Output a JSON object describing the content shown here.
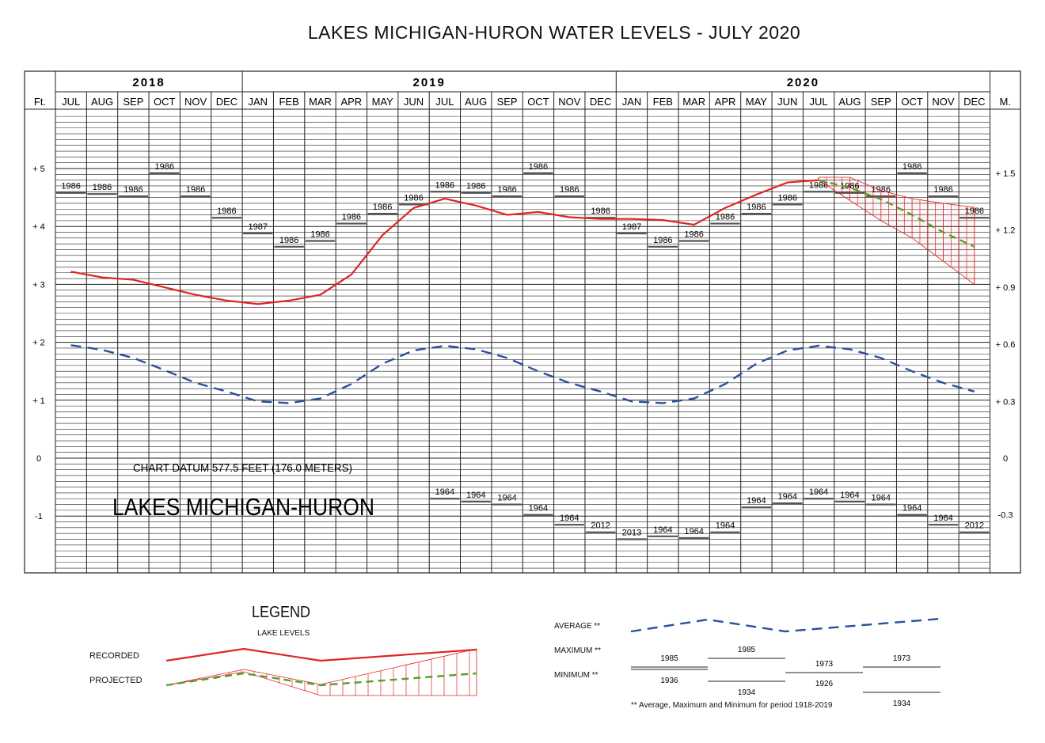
{
  "title": "LAKES MICHIGAN-HURON WATER LEVELS - JULY 2020",
  "header": {
    "left_unit": "Ft.",
    "right_unit": "M.",
    "years": [
      {
        "label": "2018",
        "months": 6
      },
      {
        "label": "2019",
        "months": 12
      },
      {
        "label": "2020",
        "months": 12
      }
    ],
    "months": [
      "JUL",
      "AUG",
      "SEP",
      "OCT",
      "NOV",
      "DEC",
      "JAN",
      "FEB",
      "MAR",
      "APR",
      "MAY",
      "JUN",
      "JUL",
      "AUG",
      "SEP",
      "OCT",
      "NOV",
      "DEC",
      "JAN",
      "FEB",
      "MAR",
      "APR",
      "MAY",
      "JUN",
      "JUL",
      "AUG",
      "SEP",
      "OCT",
      "NOV",
      "DEC"
    ]
  },
  "datum_text": "CHART DATUM  577.5 FEET (176.0 METERS)",
  "lake_name": "LAKES MICHIGAN-HURON",
  "colors": {
    "recorded": "#e02424",
    "projected": "#5a9e2a",
    "average": "#2d4f9c",
    "grid": "#222222"
  },
  "chart_data": {
    "type": "line",
    "ylim": [
      -2.0,
      6.0
    ],
    "left_ticks": [
      {
        "value": 5,
        "label": "+ 5"
      },
      {
        "value": 4,
        "label": "+ 4"
      },
      {
        "value": 3,
        "label": "+ 3"
      },
      {
        "value": 2,
        "label": "+ 2"
      },
      {
        "value": 1,
        "label": "+ 1"
      },
      {
        "value": 0,
        "label": "0"
      },
      {
        "value": -1,
        "label": "-1"
      }
    ],
    "right_ticks": [
      {
        "value": 4.92,
        "label": "+ 1.5"
      },
      {
        "value": 3.94,
        "label": "+ 1.2"
      },
      {
        "value": 2.95,
        "label": "+ 0.9"
      },
      {
        "value": 1.97,
        "label": "+ 0.6"
      },
      {
        "value": 0.98,
        "label": "+ 0.3"
      },
      {
        "value": 0,
        "label": "0"
      },
      {
        "value": -0.98,
        "label": "-0.3"
      }
    ],
    "recorded": [
      3.22,
      3.12,
      3.08,
      2.95,
      2.82,
      2.72,
      2.66,
      2.72,
      2.82,
      3.17,
      3.85,
      4.32,
      4.48,
      4.36,
      4.2,
      4.25,
      4.16,
      4.13,
      4.13,
      4.11,
      4.03,
      4.32,
      4.55,
      4.76,
      4.8
    ],
    "projected": {
      "start_index": 24,
      "mid": [
        4.8,
        4.67,
        4.47,
        4.2,
        3.9,
        3.65
      ],
      "max": [
        4.85,
        4.85,
        4.62,
        4.48,
        4.4,
        4.33
      ],
      "min": [
        4.8,
        4.45,
        4.1,
        3.8,
        3.4,
        3.0
      ]
    },
    "average": [
      1.95,
      1.87,
      1.73,
      1.52,
      1.3,
      1.15,
      0.98,
      0.95,
      1.03,
      1.28,
      1.63,
      1.86,
      1.94,
      1.88,
      1.73,
      1.5,
      1.3,
      1.15,
      0.98,
      0.95,
      1.03,
      1.28,
      1.63,
      1.86,
      1.94,
      1.88,
      1.73,
      1.5,
      1.3,
      1.15
    ],
    "max_record": {
      "levels": [
        4.58,
        4.56,
        4.52,
        4.92,
        4.52,
        4.15,
        3.88,
        3.65,
        3.75,
        4.05,
        4.22,
        4.38,
        4.6,
        4.58,
        4.52,
        4.92,
        4.52,
        4.15,
        3.88,
        3.65,
        3.75,
        4.05,
        4.22,
        4.38,
        4.6,
        4.58,
        4.52,
        4.92,
        4.52,
        4.15
      ],
      "years": [
        "1986",
        "1986",
        "1986",
        "1986",
        "1986",
        "1986",
        "1987",
        "1986",
        "1986",
        "1986",
        "1986",
        "1986",
        "1986",
        "1986",
        "1986",
        "1986",
        "1986",
        "1986",
        "1987",
        "1986",
        "1986",
        "1986",
        "1986",
        "1986",
        "1986",
        "1986",
        "1986",
        "1986",
        "1986",
        "1986"
      ]
    },
    "min_record": {
      "start_index": 12,
      "levels": [
        -0.7,
        -0.75,
        -0.8,
        -0.98,
        -1.15,
        -1.28,
        -1.4,
        -1.35,
        -1.38,
        -1.28,
        -0.85,
        -0.78,
        -0.7,
        -0.75,
        -0.8,
        -0.98,
        -1.15,
        -1.28
      ],
      "years": [
        "1964",
        "1964",
        "1964",
        "1964",
        "1964",
        "2012",
        "2013",
        "1964",
        "1964",
        "1964",
        "1964",
        "1964",
        "1964",
        "1964",
        "1964",
        "1964",
        "1964",
        "2012"
      ]
    }
  },
  "legend": {
    "title": "LEGEND",
    "subtitle": "LAKE LEVELS",
    "recorded_label": "RECORDED",
    "projected_label": "PROJECTED",
    "average_label": "AVERAGE **",
    "maximum_label": "MAXIMUM **",
    "minimum_label": "MINIMUM **",
    "maximum_years": [
      "1985",
      "1985",
      "1973",
      "1973"
    ],
    "minimum_years": [
      "1936",
      "1934",
      "1926",
      "1934"
    ],
    "footnote": "** Average, Maximum and Minimum for period 1918-2019"
  }
}
